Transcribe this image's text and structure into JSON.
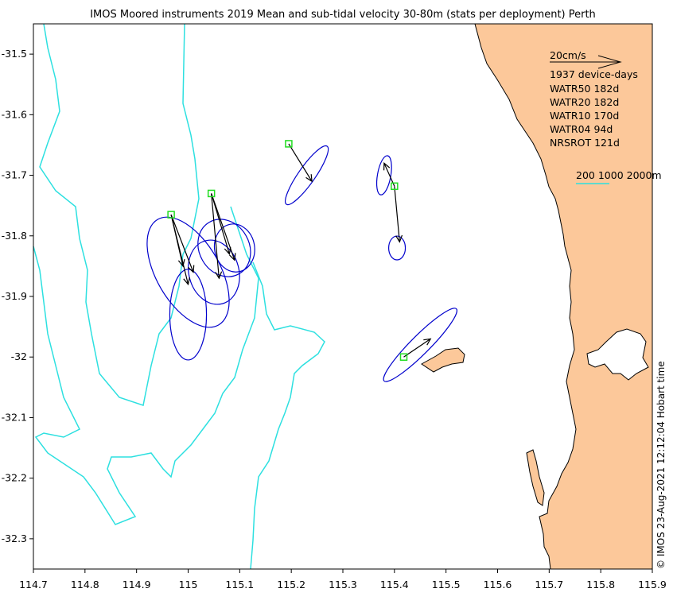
{
  "title": "IMOS Moored instruments 2019 Mean and sub-tidal velocity 30-80m (stats per deployment) Perth",
  "copyright": "© IMOS 23-Aug-2021 12:12:04 Hobart time",
  "x_ticks": [
    "114.7",
    "114.8",
    "114.9",
    "115",
    "115.1",
    "115.2",
    "115.3",
    "115.4",
    "115.5",
    "115.6",
    "115.7",
    "115.8",
    "115.9"
  ],
  "y_ticks": [
    "-31.5",
    "-31.6",
    "-31.7",
    "-31.8",
    "-31.9",
    "-32",
    "-32.1",
    "-32.2",
    "-32.3"
  ],
  "legend": {
    "scale_label": "20cm/s",
    "device_days": "1937 device-days",
    "deployments": [
      "WATR50 182d",
      "WATR20 182d",
      "WATR10 170d",
      "WATR04 94d",
      "NRSROT 121d"
    ],
    "isobaths": "200 1000 2000m"
  },
  "colors": {
    "ellipse": "#0000cc",
    "isobath": "#2de0e0",
    "land": "#fcc89a",
    "station": "#22dd22",
    "arrow": "#000000"
  },
  "chart_data": {
    "type": "map",
    "xlim": [
      114.7,
      115.9
    ],
    "ylim": [
      -32.35,
      -31.45
    ],
    "stations": [
      {
        "lon": 114.967,
        "lat": -31.765
      },
      {
        "lon": 115.045,
        "lat": -31.73
      },
      {
        "lon": 115.195,
        "lat": -31.648
      },
      {
        "lon": 115.4,
        "lat": -31.718
      },
      {
        "lon": 115.418,
        "lat": -32.0
      }
    ],
    "arrows": [
      {
        "from": [
          114.967,
          -31.765
        ],
        "to": [
          115.01,
          -31.86
        ]
      },
      {
        "from": [
          114.967,
          -31.765
        ],
        "to": [
          115.0,
          -31.88
        ]
      },
      {
        "from": [
          114.967,
          -31.765
        ],
        "to": [
          114.99,
          -31.85
        ]
      },
      {
        "from": [
          115.045,
          -31.73
        ],
        "to": [
          115.09,
          -31.84
        ]
      },
      {
        "from": [
          115.045,
          -31.73
        ],
        "to": [
          115.08,
          -31.83
        ]
      },
      {
        "from": [
          115.045,
          -31.73
        ],
        "to": [
          115.06,
          -31.87
        ]
      },
      {
        "from": [
          115.195,
          -31.648
        ],
        "to": [
          115.24,
          -31.71
        ]
      },
      {
        "from": [
          115.4,
          -31.718
        ],
        "to": [
          115.38,
          -31.68
        ]
      },
      {
        "from": [
          115.4,
          -31.718
        ],
        "to": [
          115.41,
          -31.81
        ]
      },
      {
        "from": [
          115.418,
          -32.0
        ],
        "to": [
          115.47,
          -31.97
        ]
      }
    ],
    "ellipses": [
      {
        "cx": 115.0,
        "cy": -31.86,
        "rx": 0.215,
        "ry": 0.095,
        "angle": 60
      },
      {
        "cx": 115.05,
        "cy": -31.86,
        "rx": 0.115,
        "ry": 0.075,
        "angle": 75
      },
      {
        "cx": 115.07,
        "cy": -31.82,
        "rx": 0.105,
        "ry": 0.075,
        "angle": 60
      },
      {
        "cx": 115.09,
        "cy": -31.82,
        "rx": 0.085,
        "ry": 0.06,
        "angle": 80
      },
      {
        "cx": 115.0,
        "cy": -31.93,
        "rx": 0.16,
        "ry": 0.055,
        "angle": 90
      },
      {
        "cx": 115.23,
        "cy": -31.7,
        "rx": 0.125,
        "ry": 0.025,
        "angle": -55
      },
      {
        "cx": 115.38,
        "cy": -31.7,
        "rx": 0.07,
        "ry": 0.02,
        "angle": -80
      },
      {
        "cx": 115.405,
        "cy": -31.82,
        "rx": 0.042,
        "ry": 0.025,
        "angle": -90
      },
      {
        "cx": 115.45,
        "cy": -31.98,
        "rx": 0.18,
        "ry": 0.028,
        "angle": -45
      }
    ]
  }
}
